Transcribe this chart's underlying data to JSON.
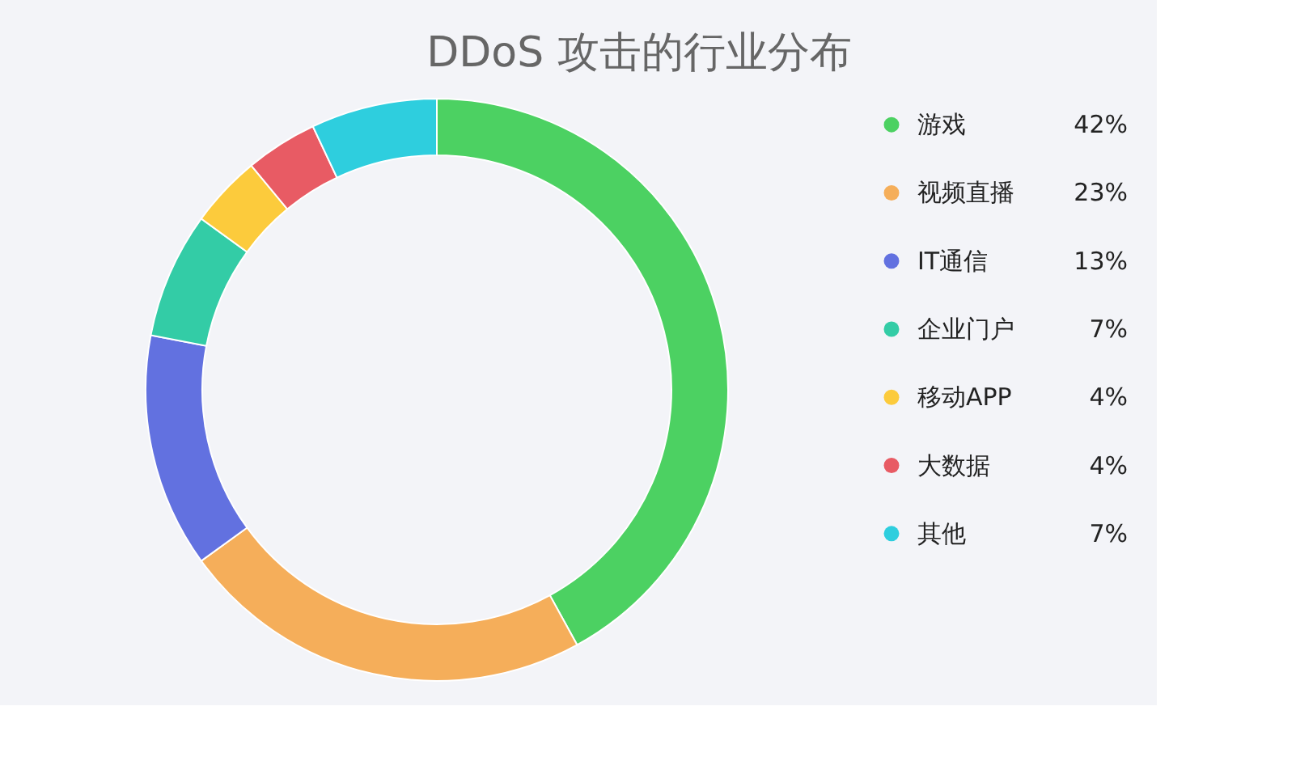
{
  "chart_data": {
    "type": "donut",
    "title": "DDoS 攻击的行业分布",
    "categories": [
      "游戏",
      "视频直播",
      "IT通信",
      "企业门户",
      "移动APP",
      "大数据",
      "其他"
    ],
    "values": [
      42,
      23,
      13,
      7,
      4,
      4,
      7
    ],
    "colors": [
      "#4cd162",
      "#f5ae5a",
      "#6271e0",
      "#33cca6",
      "#fccb3c",
      "#e85b64",
      "#2ecede"
    ],
    "value_labels": [
      "42%",
      "23%",
      "13%",
      "7%",
      "4%",
      "4%",
      "7%"
    ],
    "legend": "right"
  }
}
